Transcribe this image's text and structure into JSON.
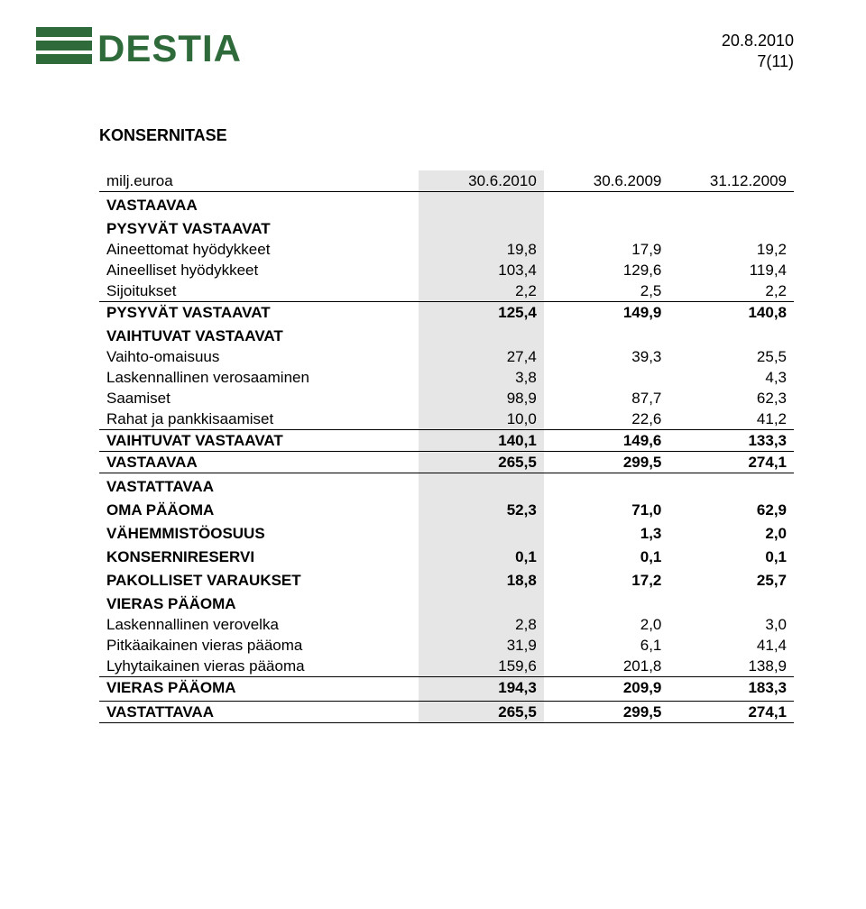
{
  "header": {
    "date": "20.8.2010",
    "page": "7(11)"
  },
  "logo": {
    "text": "DESTIA",
    "color": "#2f6b3a",
    "bar_color": "#2f6b3a"
  },
  "title": "KONSERNITASE",
  "columns": {
    "label": "milj.euroa",
    "c1": "30.6.2010",
    "c2": "30.6.2009",
    "c3": "31.12.2009"
  },
  "sections": [
    {
      "heading": "VASTAAVAA",
      "groups": [
        {
          "heading": "PYSYVÄT VASTAAVAT",
          "rows": [
            {
              "label": "Aineettomat hyödykkeet",
              "v": [
                "19,8",
                "17,9",
                "19,2"
              ]
            },
            {
              "label": "Aineelliset hyödykkeet",
              "v": [
                "103,4",
                "129,6",
                "119,4"
              ]
            },
            {
              "label": "Sijoitukset",
              "v": [
                "2,2",
                "2,5",
                "2,2"
              ]
            }
          ],
          "total": {
            "label": "PYSYVÄT VASTAAVAT",
            "v": [
              "125,4",
              "149,9",
              "140,8"
            ]
          }
        },
        {
          "heading": "VAIHTUVAT VASTAAVAT",
          "rows": [
            {
              "label": "Vaihto-omaisuus",
              "v": [
                "27,4",
                "39,3",
                "25,5"
              ]
            },
            {
              "label": "Laskennallinen verosaaminen",
              "v": [
                "3,8",
                "",
                "4,3"
              ]
            },
            {
              "label": "Saamiset",
              "v": [
                "98,9",
                "87,7",
                "62,3"
              ]
            },
            {
              "label": "Rahat ja pankkisaamiset",
              "v": [
                "10,0",
                "22,6",
                "41,2"
              ]
            }
          ],
          "total": {
            "label": "VAIHTUVAT VASTAAVAT",
            "v": [
              "140,1",
              "149,6",
              "133,3"
            ]
          }
        }
      ],
      "grand": {
        "label": "VASTAAVAA",
        "v": [
          "265,5",
          "299,5",
          "274,1"
        ]
      }
    },
    {
      "heading": "VASTATTAVAA",
      "singles": [
        {
          "label": "OMA PÄÄOMA",
          "v": [
            "52,3",
            "71,0",
            "62,9"
          ],
          "bold": true
        },
        {
          "label": "VÄHEMMISTÖOSUUS",
          "v": [
            "",
            "1,3",
            "2,0"
          ],
          "bold": true
        },
        {
          "label": "KONSERNIRESERVI",
          "v": [
            "0,1",
            "0,1",
            "0,1"
          ],
          "bold": true
        },
        {
          "label": "PAKOLLISET VARAUKSET",
          "v": [
            "18,8",
            "17,2",
            "25,7"
          ],
          "bold": true
        }
      ],
      "groups": [
        {
          "heading": "VIERAS PÄÄOMA",
          "rows": [
            {
              "label": "Laskennallinen verovelka",
              "v": [
                "2,8",
                "2,0",
                "3,0"
              ]
            },
            {
              "label": "Pitkäaikainen vieras pääoma",
              "v": [
                "31,9",
                "6,1",
                "41,4"
              ]
            },
            {
              "label": "Lyhytaikainen vieras pääoma",
              "v": [
                "159,6",
                "201,8",
                "138,9"
              ]
            }
          ],
          "total": {
            "label": "VIERAS PÄÄOMA",
            "v": [
              "194,3",
              "209,9",
              "183,3"
            ]
          }
        }
      ],
      "grand": {
        "label": "VASTATTAVAA",
        "v": [
          "265,5",
          "299,5",
          "274,1"
        ]
      }
    }
  ]
}
